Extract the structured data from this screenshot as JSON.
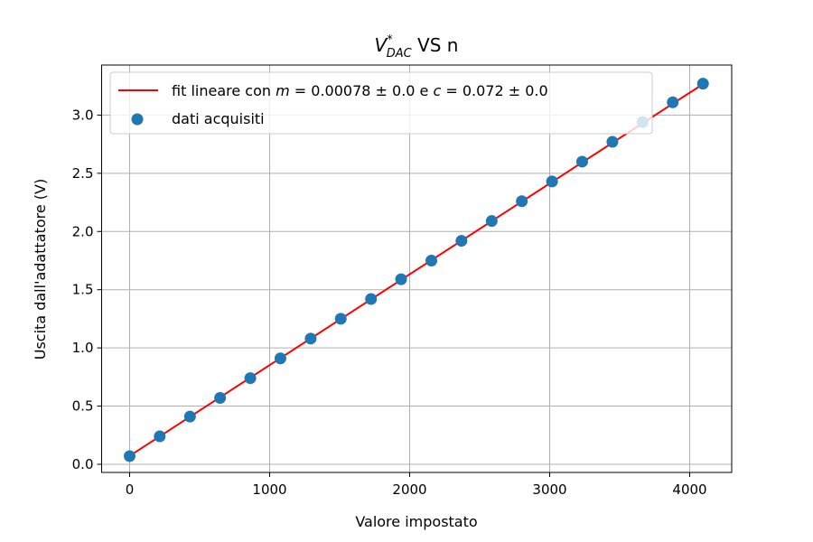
{
  "chart_data": {
    "type": "scatter",
    "title_main": "V",
    "title_sup": "*",
    "title_sub": "DAC",
    "title_rest": " VS n",
    "xlabel": "Valore impostato",
    "ylabel": "Uscita dall'adattatore (V)",
    "xlim": [
      -200,
      4300
    ],
    "ylim": [
      -0.07,
      3.43
    ],
    "xticks": [
      0,
      1000,
      2000,
      3000,
      4000
    ],
    "xtick_labels": [
      "0",
      "1000",
      "2000",
      "3000",
      "4000"
    ],
    "yticks": [
      0.0,
      0.5,
      1.0,
      1.5,
      2.0,
      2.5,
      3.0
    ],
    "ytick_labels": [
      "0.0",
      "0.5",
      "1.0",
      "1.5",
      "2.0",
      "2.5",
      "3.0"
    ],
    "grid": true,
    "legend_position": "upper-left",
    "series": [
      {
        "name": "dati acquisiti",
        "kind": "scatter",
        "color": "#1f77b4",
        "x": [
          0,
          215,
          431,
          646,
          862,
          1077,
          1293,
          1508,
          1724,
          1939,
          2155,
          2370,
          2586,
          2801,
          3017,
          3232,
          3448,
          3663,
          3879,
          4095
        ],
        "y": [
          0.07,
          0.24,
          0.41,
          0.57,
          0.74,
          0.91,
          1.08,
          1.25,
          1.42,
          1.59,
          1.75,
          1.92,
          2.09,
          2.26,
          2.43,
          2.6,
          2.77,
          2.94,
          3.11,
          3.27
        ]
      },
      {
        "name_prefix": "fit lineare con ",
        "name_m_sym": "m",
        "name_eq1": " = 0.00078 ± 0.0 e ",
        "name_c_sym": "c",
        "name_eq2": " = 0.072 ± 0.0",
        "kind": "line",
        "color": "#ff0000",
        "slope": 0.00078,
        "intercept": 0.072,
        "x": [
          0,
          4095
        ]
      }
    ]
  }
}
